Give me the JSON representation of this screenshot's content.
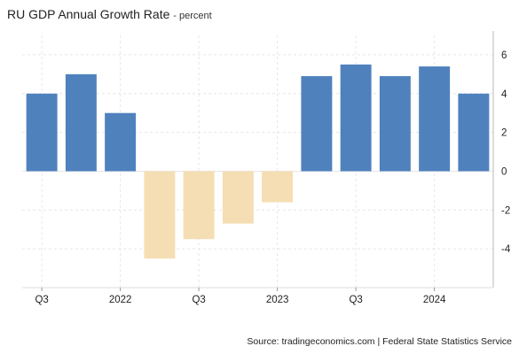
{
  "title": "RU GDP Annual Growth Rate",
  "subtitle": "- percent",
  "source": "Source: tradingeconomics.com | Federal State Statistics Service",
  "colors": {
    "positive": "#4f81bd",
    "negative": "#f5deb3",
    "grid": "#e6e6e6"
  },
  "chart_data": {
    "type": "bar",
    "categories": [
      "2021 Q3",
      "2021 Q4",
      "2022 Q1",
      "2022 Q2",
      "2022 Q3",
      "2022 Q4",
      "2023 Q1",
      "2023 Q2",
      "2023 Q3",
      "2023 Q4",
      "2024 Q1",
      "2024 Q2"
    ],
    "values": [
      4.0,
      5.0,
      3.0,
      -4.5,
      -3.5,
      -2.7,
      -1.6,
      4.9,
      5.5,
      4.9,
      5.4,
      4.0
    ],
    "ylim": [
      -6,
      7
    ],
    "yticks": [
      -4,
      -2,
      0,
      2,
      4,
      6
    ],
    "xtick_labels": [
      {
        "index": 0,
        "label": "Q3"
      },
      {
        "index": 2,
        "label": "2022"
      },
      {
        "index": 4,
        "label": "Q3"
      },
      {
        "index": 6,
        "label": "2023"
      },
      {
        "index": 8,
        "label": "Q3"
      },
      {
        "index": 10,
        "label": "2024"
      }
    ],
    "y_axis_position": "right",
    "grid": true
  }
}
